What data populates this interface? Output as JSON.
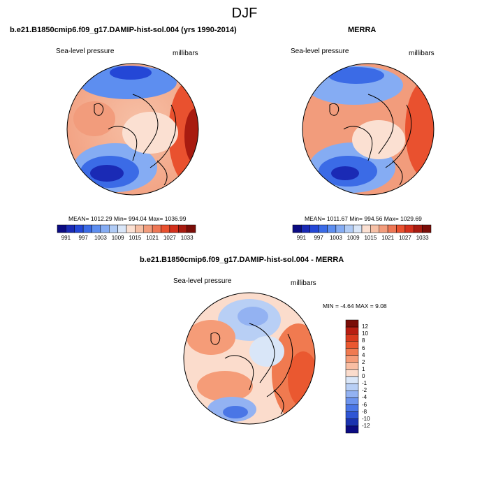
{
  "figure_title": "DJF",
  "panels": [
    {
      "title": "b.e21.B1850cmip6.f09_g17.DAMIP-hist-sol.004 (yrs 1990-2014)",
      "variable": "Sea-level pressure",
      "units": "millibars",
      "stats": "MEAN= 1012.29  Min= 994.04  Max= 1036.99",
      "colorbar": {
        "colors": [
          "#0b0b82",
          "#1a2ab5",
          "#2447d6",
          "#3b6be6",
          "#5d8ef0",
          "#85acf3",
          "#b0cbf5",
          "#d9e6f8",
          "#fbe0d2",
          "#f6c0a6",
          "#f29c7c",
          "#ee7755",
          "#e9512f",
          "#d3301c",
          "#a81b10",
          "#7a0d08"
        ],
        "tick_labels": [
          "991",
          "997",
          "1003",
          "1009",
          "1015",
          "1021",
          "1027",
          "1033"
        ]
      }
    },
    {
      "title": "MERRA",
      "variable": "Sea-level pressure",
      "units": "millibars",
      "stats": "MEAN= 1011.67  Min= 994.56  Max= 1029.69",
      "colorbar": {
        "colors": [
          "#0b0b82",
          "#1a2ab5",
          "#2447d6",
          "#3b6be6",
          "#5d8ef0",
          "#85acf3",
          "#b0cbf5",
          "#d9e6f8",
          "#fbe0d2",
          "#f6c0a6",
          "#f29c7c",
          "#ee7755",
          "#e9512f",
          "#d3301c",
          "#a81b10",
          "#7a0d08"
        ],
        "tick_labels": [
          "991",
          "997",
          "1003",
          "1009",
          "1015",
          "1021",
          "1027",
          "1033"
        ]
      }
    },
    {
      "title": "b.e21.B1850cmip6.f09_g17.DAMIP-hist-sol.004 - MERRA",
      "variable": "Sea-level pressure",
      "units": "millibars",
      "stats": "MIN = -4.64  MAX =   9.08",
      "colorbar": {
        "colors": [
          "#7a0d08",
          "#b81e12",
          "#d83a1e",
          "#ea5830",
          "#f07a50",
          "#f59c78",
          "#f9bea3",
          "#fbdccc",
          "#d9e6f8",
          "#b8cff5",
          "#93b2f2",
          "#6d94ee",
          "#4a76e6",
          "#2f55d4",
          "#1a33b0",
          "#0b0b82"
        ],
        "tick_labels": [
          "12",
          "10",
          "8",
          "6",
          "4",
          "2",
          "1",
          "0",
          "-1",
          "-2",
          "-4",
          "-6",
          "-8",
          "-10",
          "-12"
        ]
      }
    }
  ]
}
